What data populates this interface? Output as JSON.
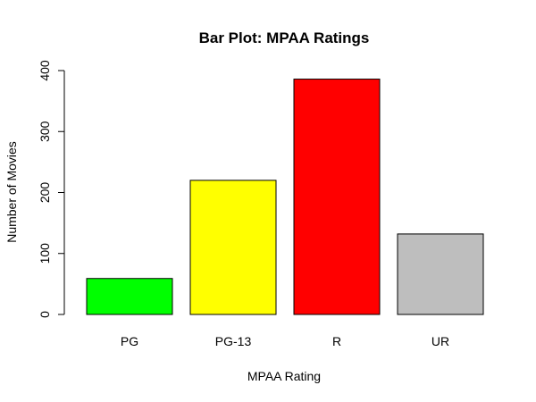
{
  "chart_data": {
    "type": "bar",
    "title": "Bar Plot: MPAA Ratings",
    "xlabel": "MPAA Rating",
    "ylabel": "Number of Movies",
    "categories": [
      "PG",
      "PG-13",
      "R",
      "UR"
    ],
    "values": [
      59,
      220,
      386,
      132
    ],
    "colors": [
      "#00ff00",
      "#ffff00",
      "#ff0000",
      "#bebebe"
    ],
    "ylim": [
      0,
      400
    ],
    "yticks": [
      0,
      100,
      200,
      300,
      400
    ],
    "grid": false,
    "legend": "none"
  }
}
